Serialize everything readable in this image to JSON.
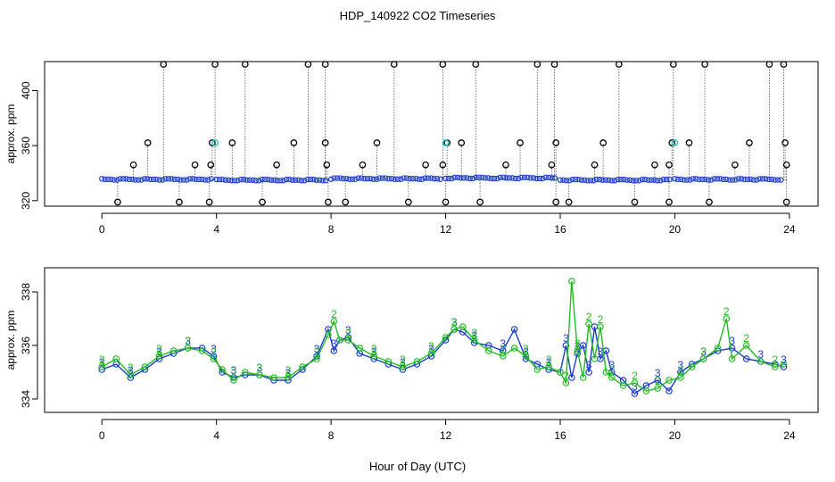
{
  "title": "HDP_140922  CO2 Timeseries",
  "xlabel": "Hour of Day (UTC)",
  "colors": {
    "black": "#000000",
    "blue": "#1a3ccc",
    "green": "#22bb22",
    "cyan": "#33cccc"
  },
  "chart_data": [
    {
      "type": "scatter",
      "title": "",
      "ylabel": "approx. ppm",
      "xlim": [
        -2,
        25
      ],
      "ylim": [
        316,
        421
      ],
      "x_ticks": [
        "0",
        "4",
        "8",
        "12",
        "16",
        "20",
        "24"
      ],
      "y_ticks": [
        "320",
        "360",
        "400"
      ],
      "grid": false,
      "baseline_segments": [
        {
          "x": [
            0.0,
            3.9
          ],
          "y": 335.5
        },
        {
          "x": [
            4.0,
            7.9
          ],
          "y": 335.0
        },
        {
          "x": [
            8.0,
            11.9
          ],
          "y": 336.0
        },
        {
          "x": [
            12.0,
            15.9
          ],
          "y": 336.5
        },
        {
          "x": [
            16.0,
            19.9
          ],
          "y": 335.0
        },
        {
          "x": [
            20.0,
            23.8
          ],
          "y": 335.5
        }
      ],
      "spikes_high": [
        2.15,
        3.95,
        5.0,
        7.2,
        7.8,
        10.2,
        11.9,
        13.05,
        15.2,
        15.8,
        18.05,
        19.95,
        21.05,
        23.3,
        23.8
      ],
      "spikes_362": [
        1.6,
        3.85,
        4.55,
        6.7,
        7.8,
        9.6,
        12.05,
        12.55,
        14.6,
        15.85,
        17.5,
        19.9,
        20.5,
        22.6,
        23.85
      ],
      "spikes_346": [
        1.1,
        3.25,
        3.8,
        6.1,
        7.85,
        9.1,
        11.3,
        11.9,
        14.1,
        15.7,
        17.2,
        19.3,
        19.8,
        22.1,
        23.9
      ],
      "spikes_low": [
        0.55,
        2.7,
        3.75,
        5.6,
        7.9,
        8.5,
        10.7,
        12.0,
        13.2,
        15.85,
        16.3,
        18.6,
        19.8,
        21.2,
        23.9
      ],
      "cyan_points": [
        3.95,
        12.0,
        20.0
      ]
    },
    {
      "type": "line",
      "title": "",
      "ylabel": "approx. ppm",
      "xlim": [
        -2,
        25
      ],
      "ylim": [
        333.5,
        338.9
      ],
      "x_ticks": [
        "0",
        "4",
        "8",
        "12",
        "16",
        "20",
        "24"
      ],
      "y_ticks": [
        "334",
        "336",
        "338"
      ],
      "grid": false,
      "series": [
        {
          "name": "",
          "label": "3",
          "color": "blue",
          "x": [
            0.0,
            0.5,
            1.0,
            1.5,
            2.0,
            2.5,
            3.0,
            3.5,
            3.9,
            4.2,
            4.6,
            5.0,
            5.5,
            6.0,
            6.5,
            7.0,
            7.5,
            7.9,
            8.1,
            8.3,
            8.6,
            9.0,
            9.5,
            10.0,
            10.5,
            11.0,
            11.5,
            12.0,
            12.3,
            12.6,
            13.0,
            13.5,
            14.0,
            14.4,
            14.8,
            15.2,
            15.6,
            16.0,
            16.2,
            16.4,
            16.6,
            16.8,
            17.0,
            17.2,
            17.4,
            17.6,
            17.8,
            18.2,
            18.6,
            19.0,
            19.4,
            19.8,
            20.2,
            20.6,
            21.0,
            21.5,
            22.0,
            22.5,
            23.0,
            23.5,
            23.8
          ],
          "y": [
            335.1,
            335.3,
            334.8,
            335.1,
            335.5,
            335.7,
            335.9,
            335.9,
            335.6,
            335.0,
            334.8,
            334.9,
            334.9,
            334.7,
            334.7,
            335.1,
            335.6,
            336.6,
            335.8,
            336.2,
            336.3,
            335.7,
            335.5,
            335.3,
            335.1,
            335.3,
            335.6,
            336.2,
            336.6,
            336.5,
            336.1,
            336.0,
            335.8,
            336.6,
            335.5,
            335.3,
            335.1,
            335.0,
            336.0,
            334.8,
            335.7,
            336.0,
            335.0,
            336.7,
            335.5,
            335.8,
            335.0,
            334.7,
            334.2,
            334.5,
            334.7,
            334.3,
            335.0,
            335.3,
            335.5,
            335.8,
            335.9,
            335.5,
            335.4,
            335.3,
            335.2
          ]
        },
        {
          "name": "",
          "label": "2",
          "color": "green",
          "x": [
            0.0,
            0.5,
            1.0,
            1.5,
            2.0,
            2.5,
            3.0,
            3.5,
            3.9,
            4.2,
            4.6,
            5.0,
            5.5,
            6.0,
            6.5,
            7.0,
            7.5,
            7.9,
            8.1,
            8.3,
            8.6,
            9.0,
            9.5,
            10.0,
            10.5,
            11.0,
            11.5,
            12.0,
            12.3,
            12.6,
            13.0,
            13.5,
            14.0,
            14.4,
            14.8,
            15.2,
            15.6,
            16.0,
            16.2,
            16.4,
            16.6,
            16.8,
            17.0,
            17.2,
            17.4,
            17.6,
            17.8,
            18.2,
            18.6,
            19.0,
            19.4,
            19.8,
            20.2,
            20.6,
            21.0,
            21.5,
            21.8,
            22.0,
            22.5,
            23.0,
            23.5,
            23.8
          ],
          "y": [
            335.2,
            335.5,
            334.9,
            335.2,
            335.6,
            335.8,
            335.9,
            335.8,
            335.5,
            335.1,
            334.7,
            335.0,
            334.9,
            334.8,
            334.8,
            335.2,
            335.5,
            336.4,
            336.9,
            336.2,
            336.2,
            335.9,
            335.6,
            335.4,
            335.2,
            335.4,
            335.7,
            336.3,
            336.6,
            336.7,
            336.2,
            335.8,
            335.6,
            335.9,
            335.6,
            335.1,
            335.2,
            335.0,
            334.6,
            338.4,
            335.8,
            334.8,
            336.8,
            335.5,
            336.7,
            335.0,
            334.8,
            334.5,
            334.6,
            334.3,
            334.4,
            334.7,
            334.8,
            335.2,
            335.5,
            335.9,
            337.0,
            335.5,
            336.0,
            335.4,
            335.2,
            335.3
          ]
        }
      ]
    }
  ]
}
